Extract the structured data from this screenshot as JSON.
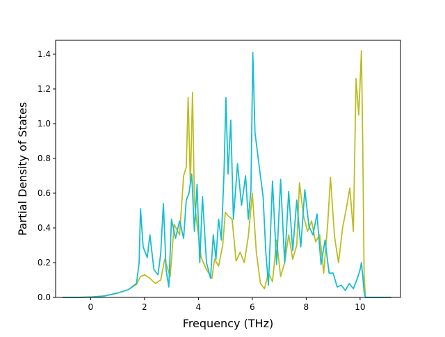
{
  "chart_data": {
    "type": "line",
    "title": "",
    "xlabel": "Frequency (THz)",
    "ylabel": "Partial Density of States",
    "xlim": [
      -1.3,
      11.5
    ],
    "ylim": [
      0.0,
      1.48
    ],
    "xticks": [
      0,
      2,
      4,
      6,
      8,
      10
    ],
    "xtick_labels": [
      "0",
      "2",
      "4",
      "6",
      "8",
      "10"
    ],
    "yticks": [
      0.0,
      0.2,
      0.4,
      0.6,
      0.8,
      1.0,
      1.2,
      1.4
    ],
    "ytick_labels": [
      "0.0",
      "0.2",
      "0.4",
      "0.6",
      "0.8",
      "1.0",
      "1.2",
      "1.4"
    ],
    "grid": false,
    "legend": "none",
    "series": [
      {
        "color": "#bcbd22",
        "x": [
          -1.05,
          -0.5,
          0.0,
          0.5,
          1.0,
          1.4,
          1.7,
          1.85,
          2.0,
          2.2,
          2.4,
          2.6,
          2.75,
          2.95,
          3.1,
          3.3,
          3.45,
          3.55,
          3.62,
          3.7,
          3.78,
          3.85,
          3.95,
          4.1,
          4.3,
          4.5,
          4.6,
          4.75,
          4.9,
          5.0,
          5.1,
          5.25,
          5.4,
          5.55,
          5.7,
          5.85,
          6.0,
          6.15,
          6.3,
          6.45,
          6.6,
          6.75,
          6.9,
          7.05,
          7.2,
          7.35,
          7.5,
          7.65,
          7.75,
          7.9,
          8.05,
          8.2,
          8.35,
          8.5,
          8.65,
          8.8,
          8.9,
          9.05,
          9.2,
          9.35,
          9.5,
          9.62,
          9.75,
          9.85,
          9.95,
          10.05,
          10.1,
          10.15,
          10.2,
          10.5,
          11.15
        ],
        "y": [
          0.0,
          0.0,
          0.002,
          0.008,
          0.025,
          0.045,
          0.075,
          0.12,
          0.13,
          0.11,
          0.08,
          0.1,
          0.22,
          0.12,
          0.42,
          0.36,
          0.7,
          0.75,
          1.15,
          0.65,
          1.18,
          0.55,
          0.42,
          0.23,
          0.16,
          0.11,
          0.22,
          0.18,
          0.3,
          0.49,
          0.47,
          0.45,
          0.21,
          0.26,
          0.2,
          0.35,
          0.6,
          0.26,
          0.08,
          0.05,
          0.14,
          0.09,
          0.33,
          0.12,
          0.2,
          0.36,
          0.22,
          0.3,
          0.66,
          0.47,
          0.38,
          0.44,
          0.32,
          0.36,
          0.14,
          0.43,
          0.69,
          0.35,
          0.2,
          0.4,
          0.52,
          0.63,
          0.38,
          1.26,
          1.05,
          1.42,
          0.85,
          0.12,
          0.0,
          0.0,
          0.0
        ]
      },
      {
        "color": "#17becf",
        "x": [
          -1.05,
          -0.5,
          0.0,
          0.5,
          1.0,
          1.4,
          1.7,
          1.8,
          1.85,
          1.95,
          2.1,
          2.2,
          2.35,
          2.5,
          2.6,
          2.7,
          2.8,
          2.9,
          3.0,
          3.15,
          3.3,
          3.45,
          3.55,
          3.65,
          3.75,
          3.85,
          3.95,
          4.05,
          4.15,
          4.3,
          4.45,
          4.55,
          4.65,
          4.75,
          4.85,
          4.95,
          5.02,
          5.1,
          5.2,
          5.3,
          5.45,
          5.6,
          5.75,
          5.85,
          5.95,
          6.02,
          6.1,
          6.25,
          6.4,
          6.5,
          6.6,
          6.75,
          6.9,
          7.05,
          7.2,
          7.35,
          7.5,
          7.65,
          7.8,
          7.95,
          8.1,
          8.25,
          8.4,
          8.55,
          8.7,
          8.85,
          9.0,
          9.15,
          9.3,
          9.45,
          9.6,
          9.75,
          9.9,
          10.0,
          10.05,
          10.1,
          10.15,
          10.2,
          10.5,
          11.15
        ],
        "y": [
          0.0,
          0.0,
          0.002,
          0.008,
          0.025,
          0.045,
          0.08,
          0.2,
          0.51,
          0.29,
          0.23,
          0.36,
          0.16,
          0.13,
          0.25,
          0.54,
          0.16,
          0.06,
          0.45,
          0.34,
          0.44,
          0.34,
          0.56,
          0.6,
          0.71,
          0.38,
          0.65,
          0.2,
          0.58,
          0.2,
          0.11,
          0.36,
          0.22,
          0.45,
          0.33,
          0.72,
          1.15,
          0.71,
          1.02,
          0.45,
          0.77,
          0.53,
          0.7,
          0.45,
          0.62,
          1.41,
          0.95,
          0.76,
          0.58,
          0.26,
          0.07,
          0.67,
          0.19,
          0.68,
          0.2,
          0.61,
          0.27,
          0.56,
          0.29,
          0.62,
          0.41,
          0.36,
          0.48,
          0.19,
          0.33,
          0.14,
          0.14,
          0.06,
          0.07,
          0.04,
          0.08,
          0.05,
          0.11,
          0.16,
          0.2,
          0.12,
          0.03,
          0.0,
          0.0,
          0.0
        ]
      }
    ]
  }
}
